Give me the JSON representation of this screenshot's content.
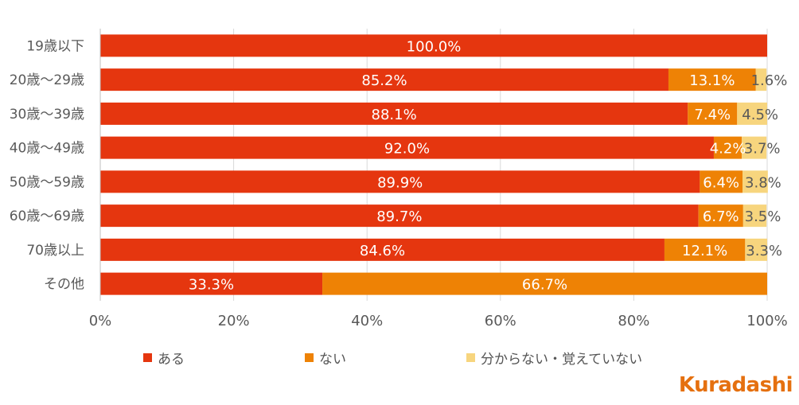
{
  "chart_data": {
    "type": "bar",
    "orientation": "horizontal",
    "stacked": true,
    "categories": [
      "19歳以下",
      "20歳～29歳",
      "30歳～39歳",
      "40歳～49歳",
      "50歳～59歳",
      "60歳～69歳",
      "70歳以上",
      "その他"
    ],
    "series": [
      {
        "name": "ある",
        "color": "#E5360F",
        "values": [
          100.0,
          85.2,
          88.1,
          92.0,
          89.9,
          89.7,
          84.6,
          33.3
        ]
      },
      {
        "name": "ない",
        "color": "#EE8205",
        "values": [
          0,
          13.1,
          7.4,
          4.2,
          6.4,
          6.7,
          12.1,
          66.7
        ]
      },
      {
        "name": "分からない・覚えていない",
        "color": "#F7D57E",
        "values": [
          0,
          1.6,
          4.5,
          3.7,
          3.8,
          3.5,
          3.3,
          0
        ]
      }
    ],
    "data_labels": [
      [
        "100.0%",
        "",
        ""
      ],
      [
        "85.2%",
        "13.1%",
        "1.6%"
      ],
      [
        "88.1%",
        "7.4%",
        "4.5%"
      ],
      [
        "92.0%",
        "4.2%",
        "3.7%"
      ],
      [
        "89.9%",
        "6.4%",
        "3.8%"
      ],
      [
        "89.7%",
        "6.7%",
        "3.5%"
      ],
      [
        "84.6%",
        "12.1%",
        "3.3%"
      ],
      [
        "33.3%",
        "66.7%",
        ""
      ]
    ],
    "x_ticks": [
      "0%",
      "20%",
      "40%",
      "60%",
      "80%",
      "100%"
    ],
    "xlim": [
      0,
      100
    ],
    "grid": true,
    "legend_position": "bottom"
  },
  "legend": {
    "items": [
      {
        "label": "ある",
        "color": "#E5360F"
      },
      {
        "label": "ない",
        "color": "#EE8205"
      },
      {
        "label": "分からない・覚えていない",
        "color": "#F7D57E"
      }
    ]
  },
  "brand": {
    "logo_text": "Kuradashi",
    "color": "#E5700F"
  }
}
